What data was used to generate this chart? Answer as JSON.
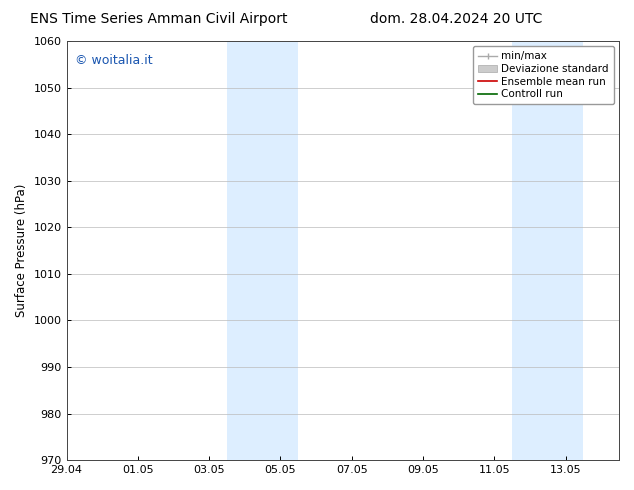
{
  "title_left": "ENS Time Series Amman Civil Airport",
  "title_right": "dom. 28.04.2024 20 UTC",
  "ylabel": "Surface Pressure (hPa)",
  "ylim": [
    970,
    1060
  ],
  "yticks": [
    970,
    980,
    990,
    1000,
    1010,
    1020,
    1030,
    1040,
    1050,
    1060
  ],
  "xtick_labels": [
    "29.04",
    "01.05",
    "03.05",
    "05.05",
    "07.05",
    "09.05",
    "11.05",
    "13.05"
  ],
  "xtick_positions": [
    0,
    2,
    4,
    6,
    8,
    10,
    12,
    14
  ],
  "xlim": [
    0,
    15.5
  ],
  "shaded_bands": [
    {
      "x_start": 4.5,
      "x_end": 6.5
    },
    {
      "x_start": 12.5,
      "x_end": 14.5
    }
  ],
  "band_color": "#ddeeff",
  "band_alpha": 1.0,
  "watermark_text": "© woitalia.it",
  "watermark_color": "#1a56b0",
  "legend_labels": [
    "min/max",
    "Deviazione standard",
    "Ensemble mean run",
    "Controll run"
  ],
  "background_color": "#ffffff",
  "grid_color": "#bbbbbb",
  "title_fontsize": 10,
  "tick_fontsize": 8,
  "ylabel_fontsize": 8.5
}
